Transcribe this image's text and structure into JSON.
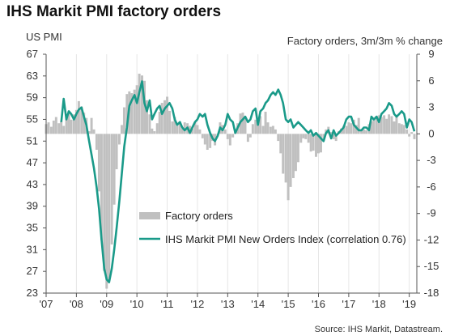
{
  "title": "IHS Markit PMI factory orders",
  "left_unit": "US PMI",
  "right_unit": "Factory orders, 3m/3m % change",
  "source": "Source: IHS Markit, Datastream.",
  "colors": {
    "line": "#1a9a89",
    "bars": "#c0c0c0",
    "grid": "#e6e6e6",
    "axis": "#555555"
  },
  "chart_data": {
    "type": "bar+line",
    "left_axis": {
      "min": 23,
      "max": 67,
      "ticks": [
        23,
        27,
        31,
        35,
        39,
        43,
        47,
        51,
        55,
        59,
        63,
        67
      ]
    },
    "right_axis": {
      "min": -18,
      "max": 9,
      "ticks": [
        "9",
        "6",
        "3",
        "0",
        "-3",
        "-6",
        "-9",
        "-12",
        "-15",
        "-18"
      ],
      "tick_values": [
        9,
        6,
        3,
        0,
        -3,
        -6,
        -9,
        -12,
        -15,
        -18
      ]
    },
    "x_axis": {
      "start": 2007.0,
      "end": 2019.25,
      "tick_labels": [
        "'07",
        "'08",
        "'09",
        "'10",
        "'11",
        "'12",
        "'13",
        "'14",
        "'15",
        "'16",
        "'17",
        "'18",
        "'19"
      ]
    },
    "legend": [
      {
        "name": "Factory orders",
        "kind": "bar"
      },
      {
        "name": "IHS Markit PMI New Orders Index (correlation 0.76)",
        "kind": "line"
      }
    ],
    "series": [
      {
        "name": "IHS Markit PMI New Orders Index (correlation 0.76)",
        "kind": "line",
        "axis": "left",
        "points": [
          [
            2007.5,
            54.5
          ],
          [
            2007.58,
            58.8
          ],
          [
            2007.67,
            55.0
          ],
          [
            2007.75,
            56.5
          ],
          [
            2007.83,
            56.0
          ],
          [
            2007.92,
            55.0
          ],
          [
            2008.0,
            56.0
          ],
          [
            2008.08,
            56.8
          ],
          [
            2008.17,
            57.2
          ],
          [
            2008.25,
            55.5
          ],
          [
            2008.33,
            54.0
          ],
          [
            2008.42,
            51.0
          ],
          [
            2008.5,
            48.5
          ],
          [
            2008.58,
            46.0
          ],
          [
            2008.67,
            42.5
          ],
          [
            2008.75,
            38.5
          ],
          [
            2008.83,
            33.0
          ],
          [
            2008.92,
            27.5
          ],
          [
            2009.0,
            25.5
          ],
          [
            2009.08,
            25.0
          ],
          [
            2009.17,
            27.5
          ],
          [
            2009.25,
            31.0
          ],
          [
            2009.33,
            35.0
          ],
          [
            2009.42,
            40.0
          ],
          [
            2009.5,
            45.0
          ],
          [
            2009.58,
            50.0
          ],
          [
            2009.67,
            53.5
          ],
          [
            2009.75,
            57.5
          ],
          [
            2009.83,
            58.5
          ],
          [
            2009.92,
            59.5
          ],
          [
            2010.0,
            58.0
          ],
          [
            2010.08,
            60.0
          ],
          [
            2010.17,
            62.0
          ],
          [
            2010.25,
            58.0
          ],
          [
            2010.33,
            56.5
          ],
          [
            2010.42,
            58.5
          ],
          [
            2010.5,
            55.0
          ],
          [
            2010.58,
            56.0
          ],
          [
            2010.67,
            57.0
          ],
          [
            2010.75,
            57.5
          ],
          [
            2010.83,
            56.0
          ],
          [
            2010.92,
            57.0
          ],
          [
            2011.0,
            57.5
          ],
          [
            2011.08,
            58.0
          ],
          [
            2011.17,
            57.0
          ],
          [
            2011.25,
            55.0
          ],
          [
            2011.33,
            54.0
          ],
          [
            2011.42,
            54.5
          ],
          [
            2011.5,
            53.5
          ],
          [
            2011.58,
            53.0
          ],
          [
            2011.67,
            53.5
          ],
          [
            2011.75,
            52.5
          ],
          [
            2011.83,
            53.5
          ],
          [
            2011.92,
            54.5
          ],
          [
            2012.0,
            55.0
          ],
          [
            2012.08,
            56.0
          ],
          [
            2012.17,
            55.5
          ],
          [
            2012.25,
            56.0
          ],
          [
            2012.33,
            54.0
          ],
          [
            2012.42,
            52.5
          ],
          [
            2012.5,
            51.5
          ],
          [
            2012.58,
            51.0
          ],
          [
            2012.67,
            52.0
          ],
          [
            2012.75,
            53.5
          ],
          [
            2012.83,
            53.0
          ],
          [
            2012.92,
            54.0
          ],
          [
            2013.0,
            56.0
          ],
          [
            2013.08,
            55.0
          ],
          [
            2013.17,
            54.5
          ],
          [
            2013.25,
            52.5
          ],
          [
            2013.33,
            53.5
          ],
          [
            2013.42,
            54.5
          ],
          [
            2013.5,
            55.0
          ],
          [
            2013.58,
            55.5
          ],
          [
            2013.67,
            54.5
          ],
          [
            2013.75,
            55.0
          ],
          [
            2013.83,
            56.5
          ],
          [
            2013.92,
            57.0
          ],
          [
            2014.0,
            54.0
          ],
          [
            2014.08,
            56.5
          ],
          [
            2014.17,
            57.0
          ],
          [
            2014.25,
            58.0
          ],
          [
            2014.33,
            58.5
          ],
          [
            2014.42,
            59.5
          ],
          [
            2014.5,
            60.0
          ],
          [
            2014.58,
            59.5
          ],
          [
            2014.67,
            60.5
          ],
          [
            2014.75,
            59.5
          ],
          [
            2014.83,
            58.0
          ],
          [
            2014.92,
            55.0
          ],
          [
            2015.0,
            54.5
          ],
          [
            2015.08,
            55.0
          ],
          [
            2015.17,
            53.5
          ],
          [
            2015.25,
            54.0
          ],
          [
            2015.33,
            54.5
          ],
          [
            2015.42,
            54.0
          ],
          [
            2015.5,
            53.5
          ],
          [
            2015.58,
            53.0
          ],
          [
            2015.67,
            52.5
          ],
          [
            2015.75,
            53.0
          ],
          [
            2015.83,
            52.0
          ],
          [
            2015.92,
            52.5
          ],
          [
            2016.0,
            52.0
          ],
          [
            2016.08,
            51.5
          ],
          [
            2016.17,
            51.0
          ],
          [
            2016.25,
            52.5
          ],
          [
            2016.33,
            53.0
          ],
          [
            2016.42,
            51.5
          ],
          [
            2016.5,
            53.0
          ],
          [
            2016.58,
            52.0
          ],
          [
            2016.67,
            52.5
          ],
          [
            2016.75,
            53.0
          ],
          [
            2016.83,
            53.5
          ],
          [
            2016.92,
            55.0
          ],
          [
            2017.0,
            55.5
          ],
          [
            2017.08,
            55.5
          ],
          [
            2017.17,
            54.0
          ],
          [
            2017.25,
            53.5
          ],
          [
            2017.33,
            53.0
          ],
          [
            2017.42,
            53.0
          ],
          [
            2017.5,
            53.5
          ],
          [
            2017.58,
            53.5
          ],
          [
            2017.67,
            53.0
          ],
          [
            2017.75,
            55.5
          ],
          [
            2017.83,
            55.0
          ],
          [
            2017.92,
            55.5
          ],
          [
            2018.0,
            54.5
          ],
          [
            2018.08,
            56.0
          ],
          [
            2018.17,
            56.5
          ],
          [
            2018.25,
            57.0
          ],
          [
            2018.33,
            58.0
          ],
          [
            2018.42,
            57.5
          ],
          [
            2018.5,
            56.0
          ],
          [
            2018.58,
            55.5
          ],
          [
            2018.67,
            56.0
          ],
          [
            2018.75,
            56.5
          ],
          [
            2018.83,
            56.0
          ],
          [
            2018.92,
            53.5
          ],
          [
            2019.0,
            55.0
          ],
          [
            2019.08,
            54.5
          ],
          [
            2019.17,
            52.8
          ]
        ]
      },
      {
        "name": "Factory orders",
        "kind": "bar",
        "axis": "right",
        "points": [
          [
            2007.0,
            1.1
          ],
          [
            2007.08,
            1.3
          ],
          [
            2007.17,
            0.8
          ],
          [
            2007.25,
            1.5
          ],
          [
            2007.33,
            1.9
          ],
          [
            2007.42,
            1.2
          ],
          [
            2007.5,
            1.4
          ],
          [
            2007.58,
            0.9
          ],
          [
            2007.67,
            1.7
          ],
          [
            2007.75,
            2.6
          ],
          [
            2007.83,
            1.6
          ],
          [
            2007.92,
            2.2
          ],
          [
            2008.0,
            2.7
          ],
          [
            2008.08,
            3.7
          ],
          [
            2008.17,
            3.1
          ],
          [
            2008.25,
            2.4
          ],
          [
            2008.33,
            1.8
          ],
          [
            2008.42,
            0.3
          ],
          [
            2008.5,
            1.8
          ],
          [
            2008.58,
            0.5
          ],
          [
            2008.67,
            -1.8
          ],
          [
            2008.75,
            -6.5
          ],
          [
            2008.83,
            -12.0
          ],
          [
            2008.92,
            -15.5
          ],
          [
            2009.0,
            -17.5
          ],
          [
            2009.08,
            -16.5
          ],
          [
            2009.17,
            -12.5
          ],
          [
            2009.25,
            -8.0
          ],
          [
            2009.33,
            -4.0
          ],
          [
            2009.42,
            -1.2
          ],
          [
            2009.5,
            1.0
          ],
          [
            2009.58,
            3.0
          ],
          [
            2009.67,
            4.5
          ],
          [
            2009.75,
            4.8
          ],
          [
            2009.83,
            4.6
          ],
          [
            2009.92,
            5.0
          ],
          [
            2010.0,
            5.5
          ],
          [
            2010.08,
            6.8
          ],
          [
            2010.17,
            6.6
          ],
          [
            2010.25,
            6.0
          ],
          [
            2010.33,
            3.8
          ],
          [
            2010.42,
            2.2
          ],
          [
            2010.5,
            0.6
          ],
          [
            2010.58,
            0.3
          ],
          [
            2010.67,
            1.2
          ],
          [
            2010.75,
            2.5
          ],
          [
            2010.83,
            3.5
          ],
          [
            2010.92,
            3.8
          ],
          [
            2011.0,
            4.2
          ],
          [
            2011.08,
            2.6
          ],
          [
            2011.17,
            1.4
          ],
          [
            2011.25,
            1.9
          ],
          [
            2011.33,
            0.9
          ],
          [
            2011.42,
            1.4
          ],
          [
            2011.5,
            0.6
          ],
          [
            2011.58,
            1.3
          ],
          [
            2011.67,
            1.2
          ],
          [
            2011.75,
            0.9
          ],
          [
            2011.83,
            0.6
          ],
          [
            2011.92,
            1.3
          ],
          [
            2012.0,
            1.0
          ],
          [
            2012.08,
            0.5
          ],
          [
            2012.17,
            -0.5
          ],
          [
            2012.25,
            -1.2
          ],
          [
            2012.33,
            -1.8
          ],
          [
            2012.42,
            -1.6
          ],
          [
            2012.5,
            -0.8
          ],
          [
            2012.58,
            -1.3
          ],
          [
            2012.67,
            -0.2
          ],
          [
            2012.75,
            1.3
          ],
          [
            2012.83,
            1.0
          ],
          [
            2012.92,
            0.5
          ],
          [
            2013.0,
            -0.6
          ],
          [
            2013.08,
            -1.3
          ],
          [
            2013.17,
            -0.4
          ],
          [
            2013.25,
            0.4
          ],
          [
            2013.33,
            1.2
          ],
          [
            2013.42,
            2.3
          ],
          [
            2013.5,
            2.4
          ],
          [
            2013.58,
            1.7
          ],
          [
            2013.67,
            -0.9
          ],
          [
            2013.75,
            -0.4
          ],
          [
            2013.83,
            1.1
          ],
          [
            2013.92,
            1.6
          ],
          [
            2014.0,
            1.2
          ],
          [
            2014.08,
            2.0
          ],
          [
            2014.17,
            0.9
          ],
          [
            2014.25,
            2.5
          ],
          [
            2014.33,
            1.3
          ],
          [
            2014.42,
            0.8
          ],
          [
            2014.5,
            0.9
          ],
          [
            2014.58,
            0.5
          ],
          [
            2014.67,
            -0.8
          ],
          [
            2014.75,
            -2.2
          ],
          [
            2014.83,
            -4.5
          ],
          [
            2014.92,
            -5.5
          ],
          [
            2015.0,
            -7.5
          ],
          [
            2015.08,
            -6.0
          ],
          [
            2015.17,
            -5.0
          ],
          [
            2015.25,
            -4.2
          ],
          [
            2015.33,
            -3.2
          ],
          [
            2015.42,
            -1.0
          ],
          [
            2015.5,
            -0.5
          ],
          [
            2015.58,
            -0.6
          ],
          [
            2015.67,
            -1.0
          ],
          [
            2015.75,
            -2.0
          ],
          [
            2015.83,
            -1.9
          ],
          [
            2015.92,
            -2.6
          ],
          [
            2016.0,
            -2.2
          ],
          [
            2016.08,
            -2.1
          ],
          [
            2016.17,
            -0.5
          ],
          [
            2016.25,
            0.5
          ],
          [
            2016.33,
            0.8
          ],
          [
            2016.42,
            0.2
          ],
          [
            2016.5,
            -0.6
          ],
          [
            2016.58,
            -0.8
          ],
          [
            2016.67,
            0.3
          ],
          [
            2016.75,
            0.6
          ],
          [
            2016.83,
            0.9
          ],
          [
            2016.92,
            0.9
          ],
          [
            2017.0,
            1.3
          ],
          [
            2017.08,
            1.2
          ],
          [
            2017.17,
            1.6
          ],
          [
            2017.25,
            1.0
          ],
          [
            2017.33,
            1.8
          ],
          [
            2017.42,
            0.5
          ],
          [
            2017.5,
            0.5
          ],
          [
            2017.58,
            0.4
          ],
          [
            2017.67,
            1.1
          ],
          [
            2017.75,
            1.4
          ],
          [
            2017.83,
            1.7
          ],
          [
            2017.92,
            2.0
          ],
          [
            2018.0,
            2.1
          ],
          [
            2018.08,
            1.9
          ],
          [
            2018.17,
            2.1
          ],
          [
            2018.25,
            1.7
          ],
          [
            2018.33,
            2.2
          ],
          [
            2018.42,
            2.0
          ],
          [
            2018.5,
            1.4
          ],
          [
            2018.58,
            2.1
          ],
          [
            2018.67,
            1.2
          ],
          [
            2018.75,
            1.1
          ],
          [
            2018.83,
            1.0
          ],
          [
            2018.92,
            0.5
          ],
          [
            2019.0,
            -0.3
          ],
          [
            2019.08,
            0.2
          ],
          [
            2019.17,
            -0.6
          ]
        ]
      }
    ],
    "grid": "vertical gridlines at year ticks",
    "legend_placement": "lower-middle"
  }
}
